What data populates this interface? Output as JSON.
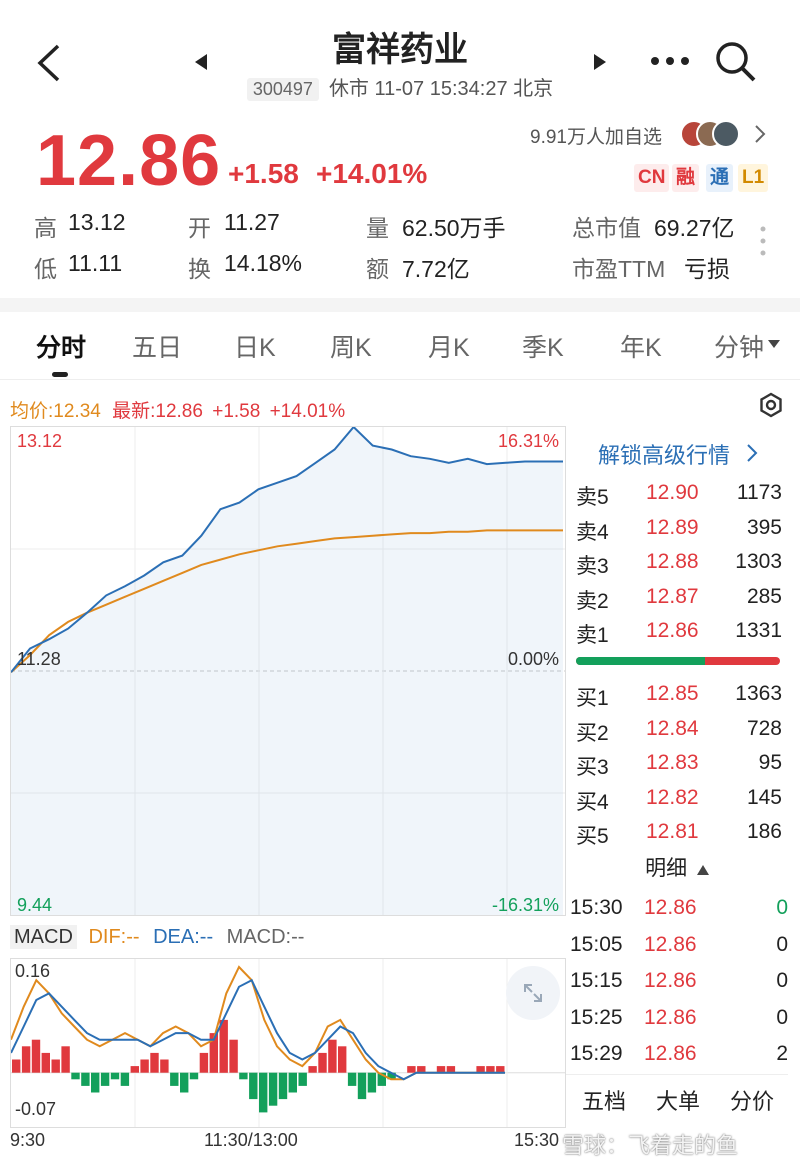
{
  "header": {
    "title": "富祥药业",
    "code": "300497",
    "status": "休市 11-07 15:34:27 北京",
    "icons": [
      "back-arrow-icon",
      "prev-triangle-icon",
      "next-triangle-icon",
      "more-icon",
      "search-icon"
    ]
  },
  "quote": {
    "price": "12.86",
    "change": "+1.58",
    "change_pct": "+14.01%",
    "followers": "9.91万人加自选",
    "badges": [
      "CN",
      "融",
      "通",
      "L1"
    ],
    "stats": [
      {
        "label": "高",
        "value": "13.12",
        "tone": "red"
      },
      {
        "label": "开",
        "value": "11.27",
        "tone": "green"
      },
      {
        "label": "量",
        "value": "62.50万手",
        "tone": "plain"
      },
      {
        "label": "总市值",
        "value": "69.27亿",
        "tone": "plain"
      },
      {
        "label": "低",
        "value": "11.11",
        "tone": "green"
      },
      {
        "label": "换",
        "value": "14.18%",
        "tone": "plain"
      },
      {
        "label": "额",
        "value": "7.72亿",
        "tone": "plain"
      },
      {
        "label": "市盈TTM",
        "value": "亏损",
        "tone": "plain"
      }
    ]
  },
  "tabs": [
    "分时",
    "五日",
    "日K",
    "周K",
    "月K",
    "季K",
    "年K",
    "分钟"
  ],
  "chart_info": {
    "avg_label": "均价:12.34",
    "latest_label": "最新:12.86",
    "latest_change": "+1.58",
    "latest_pct": "+14.01%"
  },
  "chart_data": {
    "type": "line",
    "y_left_top": "13.12",
    "y_left_mid": "11.28",
    "y_left_bottom": "9.44",
    "y_right_top": "16.31%",
    "y_right_mid": "0.00%",
    "y_right_bottom": "-16.31%",
    "ylim": [
      9.44,
      13.12
    ],
    "x_labels": [
      "9:30",
      "11:30/13:00",
      "15:30"
    ],
    "series": [
      {
        "values": [
          11.27,
          11.45,
          11.52,
          11.6,
          11.72,
          11.85,
          11.92,
          12.0,
          12.1,
          12.15,
          12.3,
          12.5,
          12.55,
          12.65,
          12.7,
          12.75,
          12.85,
          12.95,
          13.12,
          12.98,
          12.95,
          12.9,
          12.88,
          12.85,
          12.88,
          12.84,
          12.85,
          12.86,
          12.86,
          12.86
        ]
      },
      {
        "values": [
          11.27,
          11.4,
          11.55,
          11.65,
          11.72,
          11.78,
          11.84,
          11.9,
          11.96,
          12.02,
          12.08,
          12.12,
          12.16,
          12.19,
          12.22,
          12.24,
          12.26,
          12.28,
          12.29,
          12.3,
          12.31,
          12.32,
          12.32,
          12.33,
          12.33,
          12.34,
          12.34,
          12.34,
          12.34,
          12.34
        ]
      }
    ]
  },
  "order_book": {
    "unlock_label": "解锁高级行情",
    "asks": [
      {
        "label": "卖5",
        "price": "12.90",
        "vol": "1173"
      },
      {
        "label": "卖4",
        "price": "12.89",
        "vol": "395"
      },
      {
        "label": "卖3",
        "price": "12.88",
        "vol": "1303"
      },
      {
        "label": "卖2",
        "price": "12.87",
        "vol": "285"
      },
      {
        "label": "卖1",
        "price": "12.86",
        "vol": "1331"
      }
    ],
    "bids": [
      {
        "label": "买1",
        "price": "12.85",
        "vol": "1363"
      },
      {
        "label": "买2",
        "price": "12.84",
        "vol": "728"
      },
      {
        "label": "买3",
        "price": "12.83",
        "vol": "95"
      },
      {
        "label": "买4",
        "price": "12.82",
        "vol": "145"
      },
      {
        "label": "买5",
        "price": "12.81",
        "vol": "186"
      }
    ],
    "bid_ratio": 0.63,
    "detail_label": "明细",
    "ticks": [
      {
        "time": "15:30",
        "price": "12.86",
        "vol": "0",
        "vol_tone": "green"
      },
      {
        "time": "15:05",
        "price": "12.86",
        "vol": "0",
        "vol_tone": "plain"
      },
      {
        "time": "15:15",
        "price": "12.86",
        "vol": "0",
        "vol_tone": "plain"
      },
      {
        "time": "15:25",
        "price": "12.86",
        "vol": "0",
        "vol_tone": "plain"
      },
      {
        "time": "15:29",
        "price": "12.86",
        "vol": "2",
        "vol_tone": "plain"
      }
    ],
    "bottom_tabs": [
      "五档",
      "大单",
      "分价"
    ]
  },
  "macd": {
    "title": "MACD",
    "dif": "DIF:--",
    "dea": "DEA:--",
    "macd": "MACD:--",
    "y_top": "0.16",
    "y_bottom": "-0.07",
    "ylim": [
      -0.07,
      0.16
    ],
    "hist": [
      0.02,
      0.04,
      0.05,
      0.03,
      0.02,
      0.04,
      -0.01,
      -0.02,
      -0.03,
      -0.02,
      -0.01,
      -0.02,
      0.01,
      0.02,
      0.03,
      0.02,
      -0.02,
      -0.03,
      -0.01,
      0.03,
      0.06,
      0.08,
      0.05,
      -0.01,
      -0.04,
      -0.06,
      -0.05,
      -0.04,
      -0.03,
      -0.02,
      0.01,
      0.03,
      0.05,
      0.04,
      -0.02,
      -0.04,
      -0.03,
      -0.02,
      -0.01,
      0.0,
      0.01,
      0.01,
      0.0,
      0.01,
      0.01,
      0.0,
      0.0,
      0.01,
      0.01,
      0.01
    ],
    "dif_line": [
      0.05,
      0.1,
      0.14,
      0.12,
      0.09,
      0.07,
      0.05,
      0.04,
      0.05,
      0.06,
      0.05,
      0.04,
      0.06,
      0.07,
      0.06,
      0.04,
      0.05,
      0.12,
      0.16,
      0.14,
      0.08,
      0.04,
      0.02,
      0.01,
      0.03,
      0.07,
      0.08,
      0.05,
      0.02,
      0.0,
      -0.01,
      -0.01,
      0.0,
      0.0,
      0.0,
      0.0,
      0.0,
      0.0,
      0.0,
      0.0
    ],
    "dea_line": [
      0.03,
      0.07,
      0.11,
      0.12,
      0.1,
      0.08,
      0.06,
      0.05,
      0.05,
      0.05,
      0.05,
      0.04,
      0.05,
      0.06,
      0.06,
      0.05,
      0.05,
      0.09,
      0.13,
      0.14,
      0.1,
      0.06,
      0.03,
      0.02,
      0.03,
      0.05,
      0.07,
      0.06,
      0.03,
      0.01,
      0.0,
      -0.01,
      0.0,
      0.0,
      0.0,
      0.0,
      0.0,
      0.0,
      0.0,
      0.0
    ],
    "x_labels": [
      "9:30",
      "11:30/13:00",
      "15:30"
    ]
  },
  "watermark": "雪球：飞着走的鱼",
  "colors": {
    "up": "#e0393e",
    "down": "#13a05b",
    "price_line": "#2b6fb5",
    "avg_line": "#e08a1e"
  }
}
